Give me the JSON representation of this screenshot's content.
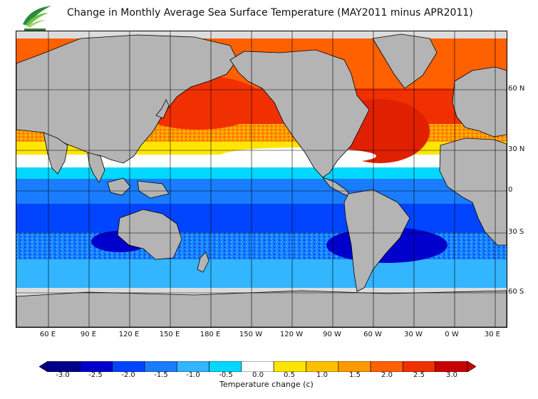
{
  "title": "Change in Monthly Average Sea Surface Temperature (MAY2011 minus APR2011)",
  "latitude_labels": [
    "60 N",
    "30 N",
    "0",
    "30 S",
    "60 S"
  ],
  "longitude_labels": [
    "60 E",
    "90 E",
    "120 E",
    "150 E",
    "180 E",
    "150 W",
    "120 W",
    "90 W",
    "60 W",
    "30 W",
    "0 W",
    "30 E"
  ],
  "legend": {
    "title": "Temperature change  (c)",
    "tick_labels": [
      "-3.0",
      "-2.5",
      "-2.0",
      "-1.5",
      "-1.0",
      "-0.5",
      "0.0",
      "0.5",
      "1.0",
      "1.5",
      "2.0",
      "2.5",
      "3.0"
    ],
    "colors": [
      "#00008b",
      "#0000cd",
      "#0044ff",
      "#1a7dff",
      "#33b5ff",
      "#00d8ff",
      "#ffffff",
      "#ffe600",
      "#ffc000",
      "#ff9900",
      "#ff6000",
      "#f03000",
      "#c80000"
    ]
  },
  "colors": {
    "land": "#b4b4b4",
    "ice_mask": "#dcdcdc",
    "coast": "#000000"
  }
}
